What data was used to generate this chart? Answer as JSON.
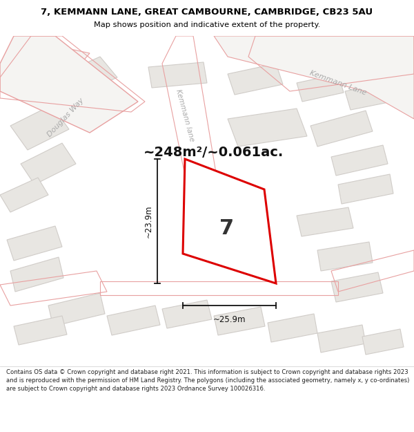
{
  "title_line1": "7, KEMMANN LANE, GREAT CAMBOURNE, CAMBRIDGE, CB23 5AU",
  "title_line2": "Map shows position and indicative extent of the property.",
  "area_text": "~248m²/~0.061ac.",
  "plot_number": "7",
  "dim_width": "~25.9m",
  "dim_height": "~23.9m",
  "road_label_douglas": "Douglas Way",
  "road_label_kemmann_top": "Kemmann Lane",
  "road_label_kemmann_mid": "Kemmann lane",
  "footer_text": "Contains OS data © Crown copyright and database right 2021. This information is subject to Crown copyright and database rights 2023 and is reproduced with the permission of HM Land Registry. The polygons (including the associated geometry, namely x, y co-ordinates) are subject to Crown copyright and database rights 2023 Ordnance Survey 100026316.",
  "bg_color": "#f5f4f2",
  "plot_fill": "#ffffff",
  "road_outline_color": "#e8a0a0",
  "building_fill": "#e8e6e2",
  "building_outline": "#d0ccc8",
  "parcel_outline": "#e8a0a0",
  "plot_outline_color": "#dd0000",
  "label_color": "#aaaaaa",
  "dim_line_color": "#111111",
  "area_text_color": "#111111",
  "plot_number_color": "#333333"
}
